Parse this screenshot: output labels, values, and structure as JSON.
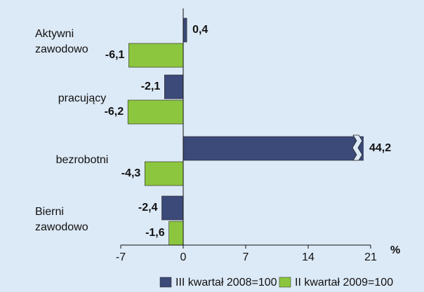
{
  "chart_data": {
    "type": "hbar",
    "categories": [
      "Aktywni zawodowo",
      "pracujący",
      "bezrobotni",
      "Bierni zawodowo"
    ],
    "series": [
      {
        "name": "III kwartał 2008=100",
        "color": "#3b4a78",
        "values": [
          0.4,
          -2.1,
          44.2,
          -2.4
        ],
        "value_labels": [
          "0,4",
          "-2,1",
          "44,2",
          "-2,4"
        ]
      },
      {
        "name": "II kwartał 2009=100",
        "color": "#8cc63e",
        "values": [
          -6.1,
          -6.2,
          -4.3,
          -1.6
        ],
        "value_labels": [
          "-6,1",
          "-6,2",
          "-4,3",
          "-1,6"
        ]
      }
    ],
    "xlim": [
      -7,
      21
    ],
    "xticks": [
      -7,
      0,
      7,
      14,
      21
    ],
    "xlabel": "%",
    "axis_break": true
  }
}
